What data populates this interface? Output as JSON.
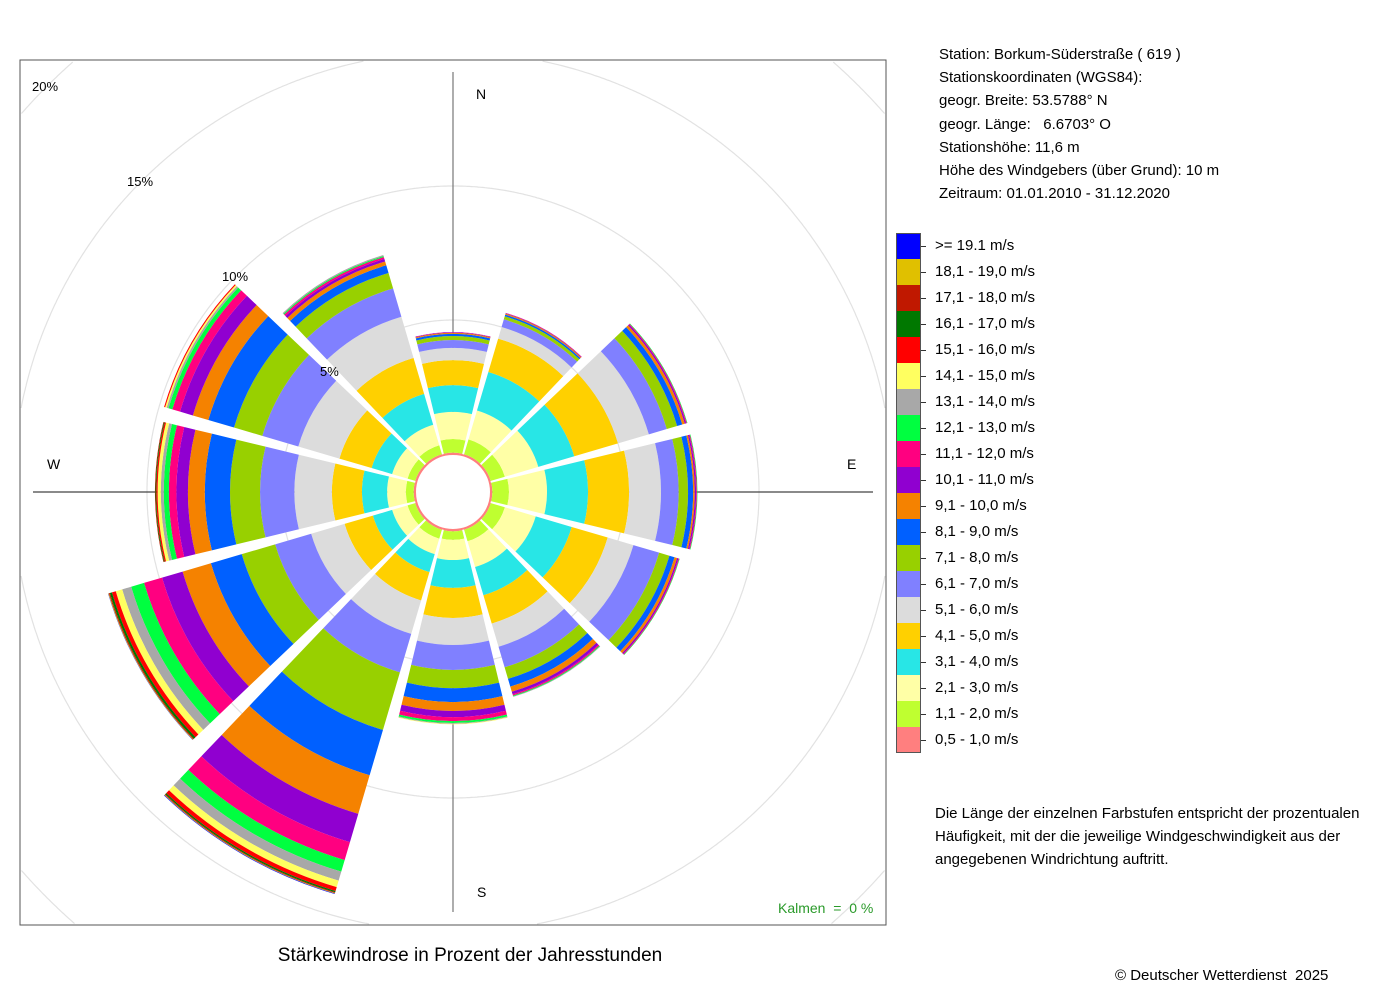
{
  "station": {
    "line1": "Station:  Borkum-Süderstraße  ( 619 )",
    "line2": "Stationskoordinaten (WGS84):",
    "line3": "geogr. Breite: 53.5788° N",
    "line4": "geogr. Länge:   6.6703° O",
    "line5": "Stationshöhe: 11,6 m",
    "line6": "Höhe des Windgebers (über Grund): 10 m",
    "line7": "Zeitraum: 01.01.2010 - 31.12.2020"
  },
  "description": [
    "Die Länge der einzelnen Farbstufen entspricht der prozentualen",
    "Häufigkeit, mit der die jeweilige Windgeschwindigkeit aus der",
    "angegebenen Windrichtung auftritt."
  ],
  "copyright": "© Deutscher Wetterdienst  2025",
  "chart_data": {
    "type": "windrose",
    "title": "Stärkewindrose in Prozent der Jahresstunden",
    "calm_label": "Kalmen  =  0 %",
    "directions": {
      "N": "N",
      "E": "E",
      "S": "S",
      "W": "W"
    },
    "radial_ticks": [
      5,
      10,
      15,
      20
    ],
    "radial_tick_labels": [
      "5%",
      "10%",
      "15%",
      "20%"
    ],
    "sector_bearings": [
      0,
      30,
      60,
      90,
      120,
      150,
      180,
      210,
      240,
      270,
      300,
      330
    ],
    "classes": [
      {
        "label": "0,5 - 1,0 m/s",
        "color": "#ff7f7f"
      },
      {
        "label": "1,1 - 2,0 m/s",
        "color": "#bfff30"
      },
      {
        "label": "2,1 - 3,0 m/s",
        "color": "#ffffa6"
      },
      {
        "label": "3,1 - 4,0 m/s",
        "color": "#28e6e6"
      },
      {
        "label": "4,1 - 5,0 m/s",
        "color": "#ffd000"
      },
      {
        "label": "5,1 - 6,0 m/s",
        "color": "#dcdcdc"
      },
      {
        "label": "6,1 - 7,0 m/s",
        "color": "#8080ff"
      },
      {
        "label": "7,1 - 8,0 m/s",
        "color": "#98d000"
      },
      {
        "label": "8,1 - 9,0 m/s",
        "color": "#0060ff"
      },
      {
        "label": "9,1 - 10,0 m/s",
        "color": "#f58200"
      },
      {
        "label": "10,1 - 11,0 m/s",
        "color": "#9000d0"
      },
      {
        "label": "11,1 - 12,0 m/s",
        "color": "#ff0080"
      },
      {
        "label": "12,1 - 13,0 m/s",
        "color": "#00ff40"
      },
      {
        "label": "13,1 - 14,0 m/s",
        "color": "#a8a8a8"
      },
      {
        "label": "14,1 - 15,0 m/s",
        "color": "#ffff60"
      },
      {
        "label": "15,1 - 16,0 m/s",
        "color": "#ff0000"
      },
      {
        "label": "16,1 - 17,0 m/s",
        "color": "#007800"
      },
      {
        "label": "17,1 - 18,0 m/s",
        "color": "#c01800"
      },
      {
        "label": "18,1 - 19,0 m/s",
        "color": "#e0c000"
      },
      {
        "label": ">= 19.1 m/s",
        "color": "#0000ff"
      }
    ],
    "values_percent": [
      [
        0.05,
        0.51,
        1.01,
        1.0,
        0.93,
        0.46,
        0.29,
        0.15,
        0.08,
        0.04,
        0.02,
        0.01,
        0,
        0,
        0,
        0,
        0,
        0,
        0,
        0
      ],
      [
        0.05,
        0.58,
        1.12,
        1.5,
        1.3,
        0.45,
        0.3,
        0.12,
        0.06,
        0.04,
        0.02,
        0.01,
        0,
        0,
        0,
        0,
        0,
        0,
        0,
        0
      ],
      [
        0.05,
        0.55,
        1.3,
        1.4,
        1.7,
        1.2,
        0.7,
        0.4,
        0.2,
        0.1,
        0.05,
        0.03,
        0.02,
        0,
        0,
        0,
        0,
        0,
        0,
        0
      ],
      [
        0.05,
        0.62,
        1.42,
        1.53,
        1.53,
        1.19,
        0.66,
        0.35,
        0.19,
        0.06,
        0.05,
        0.03,
        0.02,
        0,
        0,
        0,
        0,
        0,
        0,
        0
      ],
      [
        0.05,
        0.55,
        1.2,
        1.4,
        1.4,
        1.0,
        1.0,
        0.4,
        0.2,
        0.1,
        0.05,
        0.03,
        0.02,
        0,
        0,
        0,
        0,
        0,
        0,
        0
      ],
      [
        0.05,
        0.45,
        1.0,
        1.1,
        1.1,
        0.9,
        0.8,
        0.45,
        0.3,
        0.2,
        0.1,
        0.05,
        0.03,
        0.02,
        0,
        0,
        0,
        0,
        0,
        0
      ],
      [
        0.05,
        0.32,
        0.75,
        1.04,
        1.12,
        1.01,
        0.93,
        0.68,
        0.52,
        0.33,
        0.23,
        0.15,
        0.07,
        0.03,
        0.02,
        0,
        0,
        0,
        0,
        0
      ],
      [
        0.05,
        0.35,
        0.6,
        0.7,
        1.1,
        1.3,
        1.5,
        2.24,
        1.76,
        1.5,
        1.1,
        0.7,
        0.45,
        0.35,
        0.25,
        0.15,
        0.05,
        0.03,
        0.02,
        0.02
      ],
      [
        0.05,
        0.3,
        0.6,
        0.75,
        1.1,
        1.3,
        1.4,
        1.3,
        1.2,
        1.1,
        0.8,
        0.7,
        0.5,
        0.35,
        0.25,
        0.15,
        0.08,
        0.04,
        0.02,
        0.01
      ],
      [
        0.05,
        0.29,
        0.7,
        0.94,
        1.12,
        1.4,
        1.28,
        1.12,
        0.94,
        0.63,
        0.43,
        0.28,
        0.19,
        0.11,
        0.12,
        0.05,
        0.03,
        0.02,
        0,
        0
      ],
      [
        0.05,
        0.3,
        0.6,
        0.8,
        1.25,
        1.6,
        1.4,
        1.1,
        1.0,
        0.6,
        0.5,
        0.3,
        0.15,
        0.07,
        0.06,
        0.04,
        0,
        0,
        0,
        0
      ],
      [
        0.05,
        0.35,
        0.8,
        1.2,
        1.4,
        1.6,
        1.1,
        0.6,
        0.3,
        0.15,
        0.1,
        0.07,
        0.04,
        0.04,
        0,
        0,
        0,
        0,
        0,
        0
      ]
    ]
  }
}
